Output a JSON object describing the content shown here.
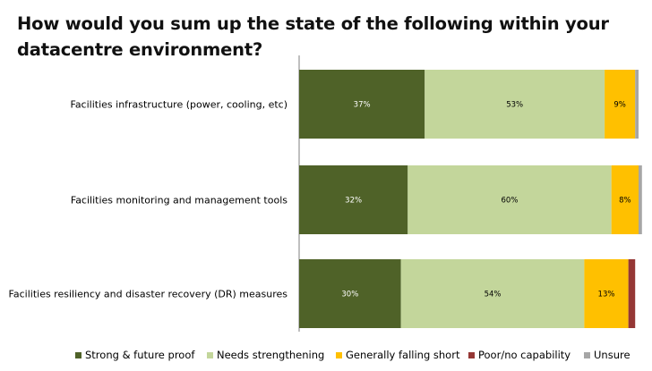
{
  "chart_data": {
    "type": "bar",
    "orientation": "horizontal",
    "stacked": true,
    "title": "How would you sum up the state of the following within your datacentre environment?",
    "xlabel": "",
    "ylabel": "",
    "xlim": [
      0,
      100
    ],
    "grid": false,
    "legend_position": "bottom",
    "categories": [
      "Facilities infrastructure (power, cooling, etc)",
      "Facilities monitoring and management tools",
      "Facilities resiliency and disaster recovery (DR) measures"
    ],
    "series": [
      {
        "name": "Strong & future proof",
        "color": "#4f6228",
        "label_color": "#ffffff",
        "values": [
          37,
          32,
          30
        ],
        "labels": [
          "37%",
          "32%",
          "30%"
        ]
      },
      {
        "name": "Needs strengthening",
        "color": "#c3d69b",
        "label_color": "#000000",
        "values": [
          53,
          60,
          54
        ],
        "labels": [
          "53%",
          "60%",
          "54%"
        ]
      },
      {
        "name": "Generally falling short",
        "color": "#ffc000",
        "label_color": "#000000",
        "values": [
          9,
          8,
          13
        ],
        "labels": [
          "9%",
          "8%",
          "13%"
        ]
      },
      {
        "name": "Poor/no capability",
        "color": "#953735",
        "label_color": "#ffffff",
        "values": [
          0,
          0,
          2
        ],
        "labels": [
          "",
          "",
          ""
        ]
      },
      {
        "name": "Unsure",
        "color": "#a6a6a6",
        "label_color": "#000000",
        "values": [
          1,
          1,
          0
        ],
        "labels": [
          "",
          "",
          ""
        ]
      }
    ]
  }
}
